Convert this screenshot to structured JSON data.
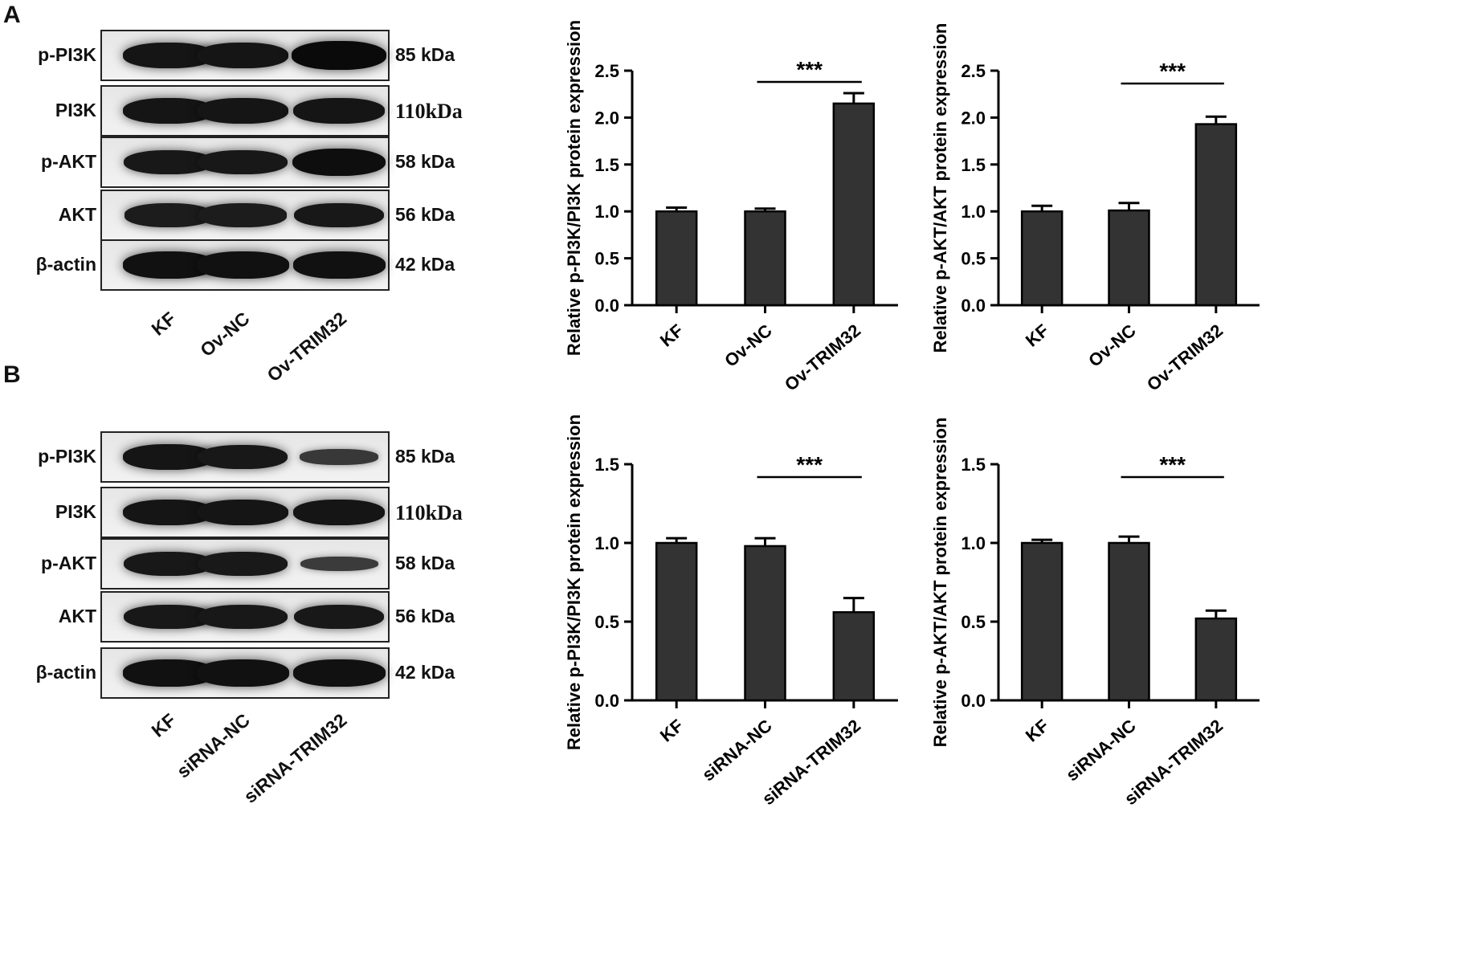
{
  "panels": [
    {
      "letter": "A"
    },
    {
      "letter": "B"
    }
  ],
  "blots": [
    {
      "rows": [
        {
          "label": "p-PI3K",
          "kda": "85 kDa",
          "serif": false,
          "bands": [
            0.85,
            0.85,
            1.0
          ]
        },
        {
          "label": "PI3K",
          "kda": "110kDa",
          "serif": true,
          "bands": [
            0.85,
            0.85,
            0.85
          ]
        },
        {
          "label": "p-AKT",
          "kda": "58 kDa",
          "serif": false,
          "bands": [
            0.8,
            0.8,
            0.95
          ]
        },
        {
          "label": "AKT",
          "kda": "56 kDa",
          "serif": false,
          "bands": [
            0.75,
            0.75,
            0.8
          ]
        },
        {
          "label": "β-actin",
          "kda": "42 kDa",
          "serif": false,
          "bands": [
            0.9,
            0.9,
            0.9
          ]
        }
      ],
      "lanes": [
        "KF",
        "Ov-NC",
        "Ov-TRIM32"
      ]
    },
    {
      "rows": [
        {
          "label": "p-PI3K",
          "kda": "85 kDa",
          "serif": false,
          "bands": [
            0.85,
            0.8,
            0.35
          ]
        },
        {
          "label": "PI3K",
          "kda": "110kDa",
          "serif": true,
          "bands": [
            0.85,
            0.85,
            0.85
          ]
        },
        {
          "label": "p-AKT",
          "kda": "58 kDa",
          "serif": false,
          "bands": [
            0.8,
            0.78,
            0.3
          ]
        },
        {
          "label": "AKT",
          "kda": "56 kDa",
          "serif": false,
          "bands": [
            0.8,
            0.8,
            0.8
          ]
        },
        {
          "label": "β-actin",
          "kda": "42 kDa",
          "serif": false,
          "bands": [
            0.9,
            0.9,
            0.9
          ]
        }
      ],
      "lanes": [
        "KF",
        "siRNA-NC",
        "siRNA-TRIM32"
      ]
    }
  ],
  "chart_data": [
    {
      "type": "bar",
      "categories": [
        "KF",
        "Ov-NC",
        "Ov-TRIM32"
      ],
      "values": [
        1.0,
        1.0,
        2.15
      ],
      "errors": [
        0.04,
        0.03,
        0.11
      ],
      "ylabel": "Relative p-PI3K/PI3K protein expression",
      "ylim": [
        0,
        2.5
      ],
      "yticks": [
        "0.0",
        "0.5",
        "1.0",
        "1.5",
        "2.0",
        "2.5"
      ],
      "significance": {
        "from": 1,
        "to": 2,
        "label": "***"
      }
    },
    {
      "type": "bar",
      "categories": [
        "KF",
        "Ov-NC",
        "Ov-TRIM32"
      ],
      "values": [
        1.0,
        1.01,
        1.93
      ],
      "errors": [
        0.06,
        0.08,
        0.08
      ],
      "ylabel": "Relative p-AKT/AKT protein expression",
      "ylim": [
        0,
        2.5
      ],
      "yticks": [
        "0.0",
        "0.5",
        "1.0",
        "1.5",
        "2.0",
        "2.5"
      ],
      "significance": {
        "from": 1,
        "to": 2,
        "label": "***"
      }
    },
    {
      "type": "bar",
      "categories": [
        "KF",
        "siRNA-NC",
        "siRNA-TRIM32"
      ],
      "values": [
        1.0,
        0.98,
        0.56
      ],
      "errors": [
        0.03,
        0.05,
        0.09
      ],
      "ylabel": "Relative p-PI3K/PI3K protein expression",
      "ylim": [
        0,
        1.5
      ],
      "yticks": [
        "0.0",
        "0.5",
        "1.0",
        "1.5"
      ],
      "significance": {
        "from": 1,
        "to": 2,
        "label": "***"
      }
    },
    {
      "type": "bar",
      "categories": [
        "KF",
        "siRNA-NC",
        "siRNA-TRIM32"
      ],
      "values": [
        1.0,
        1.0,
        0.52
      ],
      "errors": [
        0.02,
        0.04,
        0.05
      ],
      "ylabel": "Relative p-AKT/AKT protein expression",
      "ylim": [
        0,
        1.5
      ],
      "yticks": [
        "0.0",
        "0.5",
        "1.0",
        "1.5"
      ],
      "significance": {
        "from": 1,
        "to": 2,
        "label": "***"
      }
    }
  ]
}
